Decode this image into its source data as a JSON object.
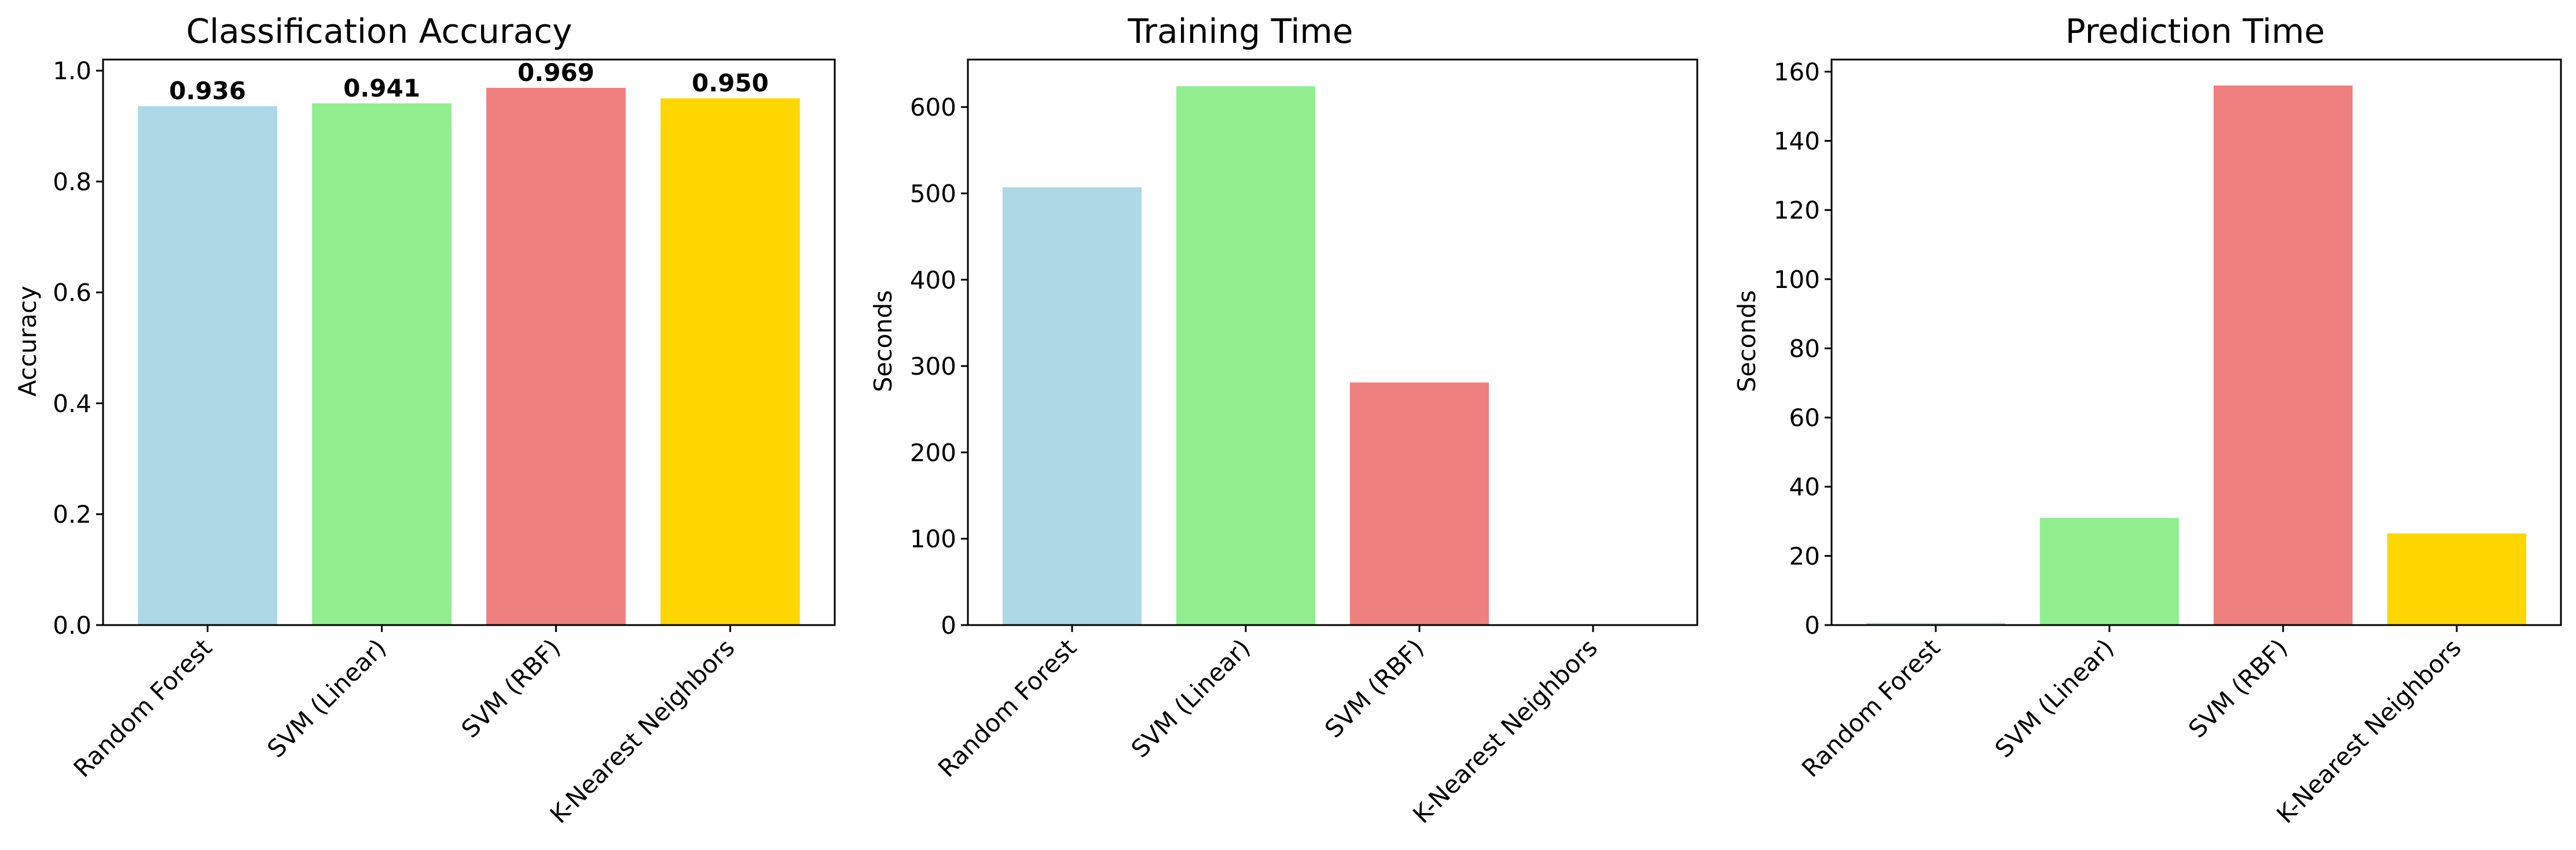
{
  "chart_data": [
    {
      "type": "bar",
      "title": "Classification Accuracy",
      "xlabel": "",
      "ylabel": "Accuracy",
      "categories": [
        "Random Forest",
        "SVM (Linear)",
        "SVM (RBF)",
        "K-Nearest Neighbors"
      ],
      "values": [
        0.936,
        0.941,
        0.969,
        0.95
      ],
      "colors": [
        "#add8e6",
        "#90ee90",
        "#f08080",
        "#ffd700"
      ],
      "ylim": [
        0,
        1.02
      ],
      "yticks": [
        0.0,
        0.2,
        0.4,
        0.6,
        0.8,
        1.0
      ],
      "ytick_labels": [
        "0.0",
        "0.2",
        "0.4",
        "0.6",
        "0.8",
        "1.0"
      ],
      "data_labels": [
        "0.936",
        "0.941",
        "0.969",
        "0.950"
      ],
      "grid": false,
      "legend": "none"
    },
    {
      "type": "bar",
      "title": "Training Time",
      "xlabel": "",
      "ylabel": "Seconds",
      "categories": [
        "Random Forest",
        "SVM (Linear)",
        "SVM (RBF)",
        "K-Nearest Neighbors"
      ],
      "values": [
        507,
        624,
        281,
        0.5
      ],
      "colors": [
        "#add8e6",
        "#90ee90",
        "#f08080",
        "#ffd700"
      ],
      "ylim": [
        0,
        655
      ],
      "yticks": [
        0,
        100,
        200,
        300,
        400,
        500,
        600
      ],
      "ytick_labels": [
        "0",
        "100",
        "200",
        "300",
        "400",
        "500",
        "600"
      ],
      "grid": false,
      "legend": "none"
    },
    {
      "type": "bar",
      "title": "Prediction Time",
      "xlabel": "",
      "ylabel": "Seconds",
      "categories": [
        "Random Forest",
        "SVM (Linear)",
        "SVM (RBF)",
        "K-Nearest Neighbors"
      ],
      "values": [
        0.6,
        31,
        156,
        26.5
      ],
      "colors": [
        "#add8e6",
        "#90ee90",
        "#f08080",
        "#ffd700"
      ],
      "ylim": [
        0,
        163.5
      ],
      "yticks": [
        0,
        20,
        40,
        60,
        80,
        100,
        120,
        140,
        160
      ],
      "ytick_labels": [
        "0",
        "20",
        "40",
        "60",
        "80",
        "100",
        "120",
        "140",
        "160"
      ],
      "grid": false,
      "legend": "none"
    }
  ]
}
